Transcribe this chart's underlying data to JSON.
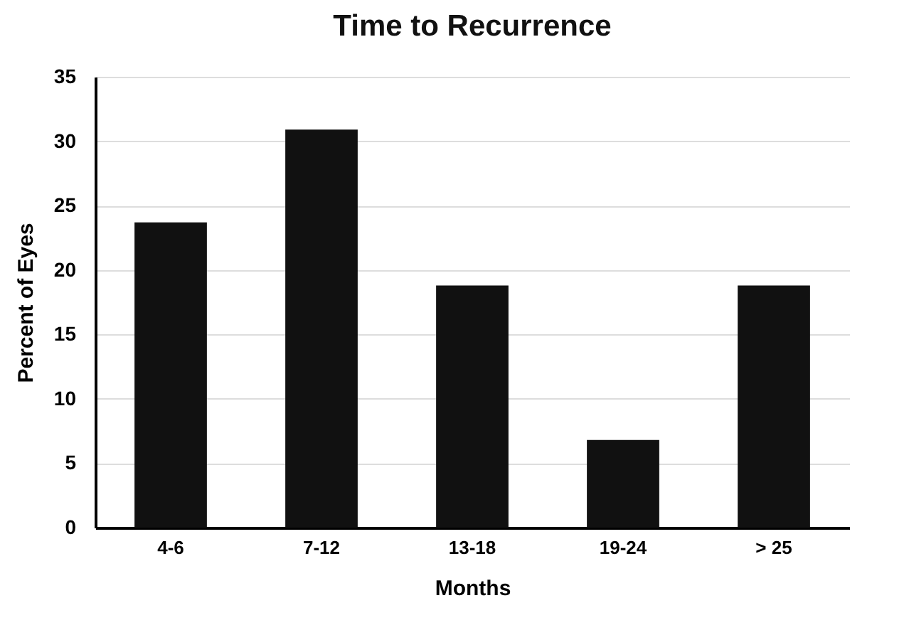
{
  "chart_data": {
    "type": "bar",
    "title": "Time to Recurrence",
    "xlabel": "Months",
    "ylabel": "Percent of Eyes",
    "categories": [
      "4-6",
      "7-12",
      "13-18",
      "19-24",
      "> 25"
    ],
    "values": [
      23.7,
      30.9,
      18.8,
      6.8,
      18.8
    ],
    "color": "#111111",
    "ylim": [
      0,
      35
    ],
    "yticks": [
      0,
      5,
      10,
      15,
      20,
      25,
      30,
      35
    ],
    "grid": "y"
  }
}
